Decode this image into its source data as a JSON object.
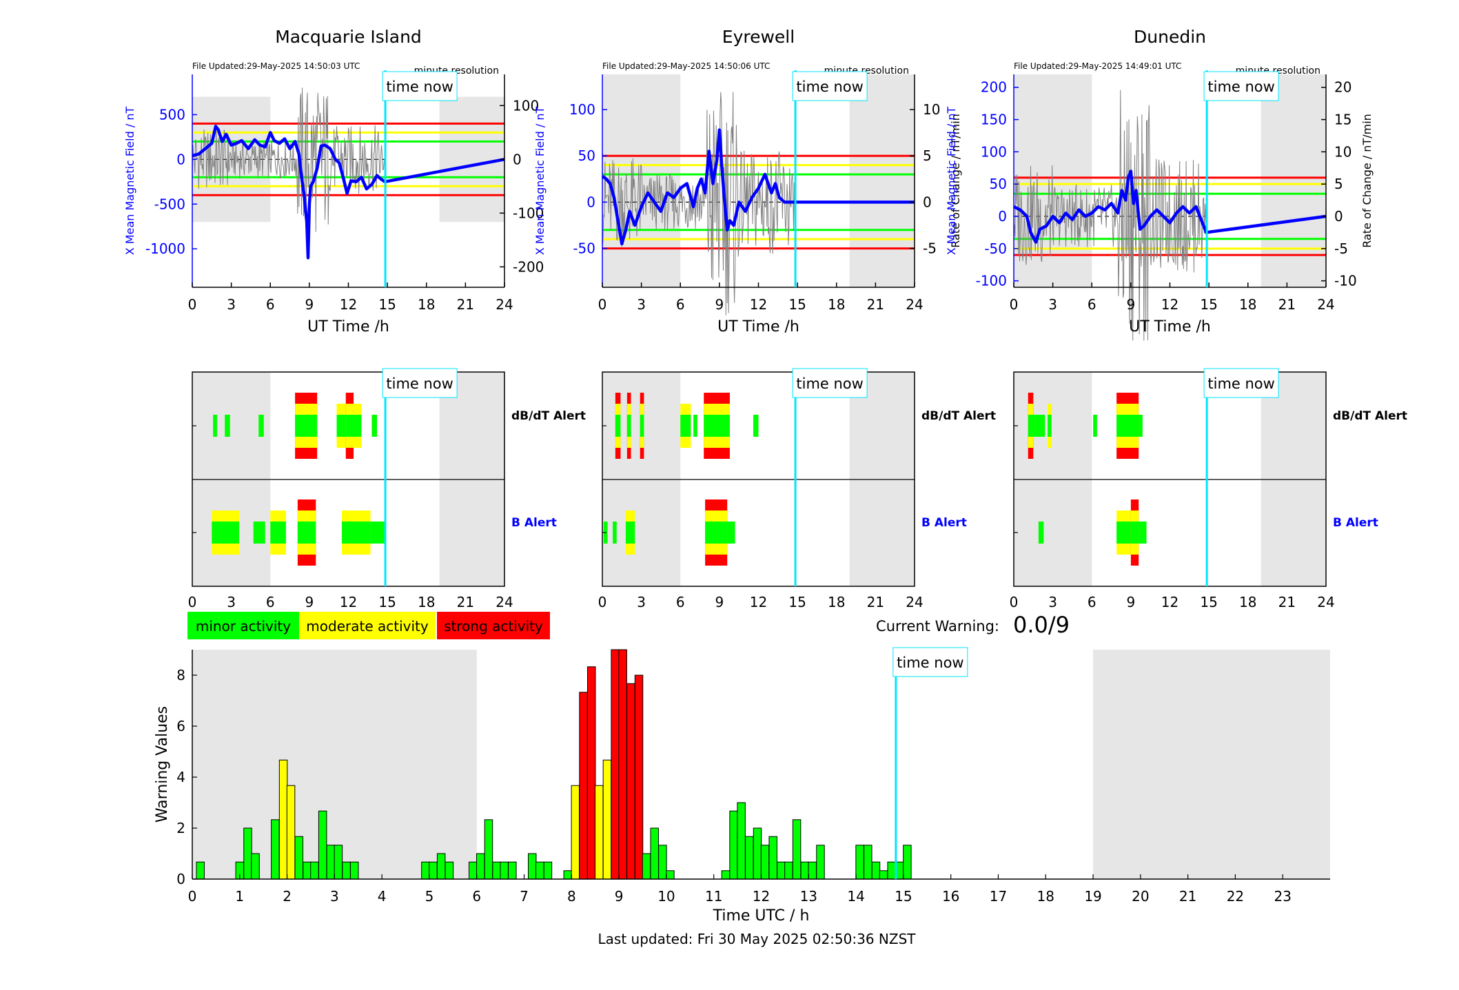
{
  "page": {
    "footer": "Last updated: Fri 30 May 2025 02:50:36 NZST"
  },
  "colors": {
    "minor": "#00ff00",
    "moderate": "#ffff00",
    "strong": "#ff0000",
    "series": "#0000ff",
    "now": "#00e5ff",
    "shade": "#e6e6e6",
    "thin": "#808080"
  },
  "time_now_label": "time now",
  "time_now_hour": 14.84,
  "night_bands": [
    [
      0,
      6
    ],
    [
      19,
      24
    ]
  ],
  "stations": [
    {
      "name": "Macquarie Island",
      "file_updated": "File Updated:29-May-2025 14:50:03 UTC",
      "resolution": "minute resolution",
      "left_label": "X Mean Magnetic Field / nT",
      "right_label": "",
      "xlabel": "UT Time /h",
      "left_ylim": [
        -1430,
        950
      ],
      "left_ticks": [
        -1000,
        -500,
        0,
        500
      ],
      "right_ylim": [
        -238,
        158
      ],
      "right_ticks": [
        -200,
        -100,
        0,
        100
      ],
      "night": [
        [
          0,
          6
        ],
        [
          19,
          24
        ]
      ],
      "night_ylim": [
        -700,
        700
      ],
      "thresholds": {
        "green": 200,
        "yellow": 300,
        "red": 400
      }
    },
    {
      "name": "Eyrewell",
      "file_updated": "File Updated:29-May-2025 14:50:06 UTC",
      "resolution": "minute resolution",
      "left_label": "X Mean Magnetic Field / nT",
      "right_label": "Rate of Change / nT/min",
      "xlabel": "UT Time /h",
      "left_ylim": [
        -92,
        138
      ],
      "left_ticks": [
        -50,
        0,
        50,
        100
      ],
      "right_ylim": [
        -9.2,
        13.8
      ],
      "right_ticks": [
        -5,
        0,
        5,
        10
      ],
      "night": [
        [
          0,
          6
        ],
        [
          19,
          24
        ]
      ],
      "night_ylim": [
        -92,
        138
      ],
      "thresholds": {
        "green": 30,
        "yellow": 40,
        "red": 50
      }
    },
    {
      "name": "Dunedin",
      "file_updated": "File Updated:29-May-2025 14:49:01 UTC",
      "resolution": "minute resolution",
      "left_label": "X Mean Magnetic Field / nT",
      "right_label": "Rate of Change / nT/min",
      "xlabel": "UT Time /h",
      "left_ylim": [
        -110,
        220
      ],
      "left_ticks": [
        -100,
        -50,
        0,
        50,
        100,
        150,
        200
      ],
      "right_ylim": [
        -11,
        22
      ],
      "right_ticks": [
        -10,
        -5,
        0,
        5,
        10,
        15,
        20
      ],
      "night": [
        [
          0,
          6
        ],
        [
          19,
          24
        ]
      ],
      "night_ylim": [
        -110,
        220
      ],
      "thresholds": {
        "green": 35,
        "yellow": 50,
        "red": 60
      }
    }
  ],
  "alert_labels": {
    "dbdt": "dB/dT Alert",
    "b": "B Alert"
  },
  "legend": {
    "minor": "minor activity",
    "moderate": "moderate activity",
    "strong": "strong activity"
  },
  "current_warning": {
    "label": "Current Warning:",
    "value": "0.0/9"
  },
  "chart_data": [
    {
      "type": "line",
      "title": "Macquarie Island",
      "xlabel": "UT Time /h",
      "ylabel": "X Mean Magnetic Field / nT",
      "xlim": [
        0,
        24
      ],
      "x_ticks": [
        0,
        3,
        6,
        9,
        12,
        15,
        18,
        21,
        24
      ],
      "series": [
        {
          "x": [
            0,
            0.5,
            1,
            1.5,
            1.8,
            2,
            2.3,
            2.6,
            3,
            3.4,
            3.8,
            4.3,
            4.8,
            5.2,
            5.6,
            6,
            6.3,
            6.7,
            7.1,
            7.5,
            7.9,
            8.2,
            8.4,
            8.6,
            8.8,
            8.9,
            9.0,
            9.1,
            9.3,
            9.6,
            9.9,
            10.2,
            10.6,
            11,
            11.3,
            11.6,
            11.9,
            12.2,
            12.6,
            13,
            13.4,
            13.8,
            14.2,
            14.5,
            14.8,
            24
          ],
          "y": [
            40,
            60,
            120,
            180,
            370,
            330,
            200,
            280,
            160,
            180,
            210,
            120,
            220,
            160,
            140,
            300,
            210,
            180,
            230,
            120,
            200,
            60,
            -200,
            -400,
            -700,
            -1100,
            -500,
            -300,
            -250,
            -100,
            150,
            160,
            120,
            0,
            -40,
            -200,
            -380,
            -240,
            -250,
            -200,
            -330,
            -280,
            -180,
            -220,
            -250,
            0
          ]
        }
      ]
    },
    {
      "type": "line",
      "title": "Eyrewell",
      "xlabel": "UT Time /h",
      "ylabel": "X Mean Magnetic Field / nT",
      "xlim": [
        0,
        24
      ],
      "x_ticks": [
        0,
        3,
        6,
        9,
        12,
        15,
        18,
        21,
        24
      ],
      "series": [
        {
          "x": [
            0,
            0.3,
            0.6,
            0.9,
            1.2,
            1.5,
            1.8,
            2.1,
            2.5,
            3,
            3.5,
            4,
            4.5,
            5,
            5.5,
            6,
            6.5,
            7,
            7.3,
            7.6,
            7.9,
            8.2,
            8.5,
            8.8,
            9.0,
            9.2,
            9.4,
            9.6,
            9.8,
            10.1,
            10.5,
            11,
            11.5,
            12,
            12.5,
            13,
            13.3,
            13.6,
            14,
            24
          ],
          "y": [
            28,
            25,
            20,
            5,
            -20,
            -45,
            -30,
            -10,
            -25,
            -5,
            10,
            0,
            -10,
            10,
            5,
            15,
            20,
            -5,
            15,
            25,
            10,
            55,
            20,
            45,
            78,
            35,
            0,
            -30,
            -20,
            -25,
            0,
            -10,
            5,
            15,
            30,
            10,
            20,
            5,
            0,
            0
          ]
        }
      ]
    },
    {
      "type": "line",
      "title": "Dunedin",
      "xlabel": "UT Time /h",
      "ylabel": "X Mean Magnetic Field / nT",
      "xlim": [
        0,
        24
      ],
      "x_ticks": [
        0,
        3,
        6,
        9,
        12,
        15,
        18,
        21,
        24
      ],
      "series": [
        {
          "x": [
            0,
            0.5,
            1,
            1.3,
            1.7,
            2,
            2.5,
            3,
            3.5,
            4,
            4.5,
            5,
            5.5,
            6,
            6.5,
            7,
            7.5,
            8,
            8.3,
            8.6,
            8.8,
            9.0,
            9.2,
            9.4,
            9.7,
            10,
            10.5,
            11,
            11.5,
            12,
            12.5,
            13,
            13.5,
            14,
            14.5,
            14.8,
            24
          ],
          "y": [
            15,
            10,
            0,
            -25,
            -40,
            -20,
            -15,
            0,
            -10,
            5,
            -5,
            10,
            0,
            5,
            15,
            10,
            20,
            5,
            40,
            25,
            60,
            70,
            20,
            40,
            -20,
            -15,
            0,
            10,
            0,
            -10,
            5,
            15,
            5,
            15,
            -10,
            -25,
            0
          ]
        }
      ]
    },
    {
      "type": "bar",
      "xlabel": "Time UTC / h",
      "ylabel": "Warning Values",
      "xlim": [
        0,
        24
      ],
      "ylim": [
        0,
        9
      ],
      "x_ticks": [
        0,
        1,
        2,
        3,
        4,
        5,
        6,
        7,
        8,
        9,
        10,
        11,
        12,
        13,
        14,
        15,
        16,
        17,
        18,
        19,
        20,
        21,
        22,
        23
      ],
      "y_ticks": [
        0,
        2,
        4,
        6,
        8
      ],
      "bar_width_h": 0.1667,
      "x": [
        0.17,
        1.0,
        1.17,
        1.33,
        1.75,
        1.92,
        2.08,
        2.25,
        2.42,
        2.58,
        2.75,
        2.92,
        3.08,
        3.25,
        3.42,
        4.92,
        5.08,
        5.25,
        5.42,
        5.92,
        6.08,
        6.25,
        6.42,
        6.58,
        6.75,
        7.17,
        7.33,
        7.5,
        7.92,
        8.08,
        8.25,
        8.42,
        8.58,
        8.75,
        8.92,
        9.08,
        9.25,
        9.42,
        9.58,
        9.75,
        9.92,
        10.08,
        11.25,
        11.42,
        11.58,
        11.75,
        11.92,
        12.08,
        12.25,
        12.42,
        12.58,
        12.75,
        12.92,
        13.08,
        13.25,
        14.08,
        14.25,
        14.42,
        14.58,
        14.75,
        14.92,
        15.08
      ],
      "values": [
        0.67,
        0.67,
        2,
        1,
        2.33,
        4.67,
        3.67,
        1.67,
        0.67,
        0.67,
        2.67,
        1.33,
        1.33,
        0.67,
        0.67,
        0.67,
        0.67,
        1,
        0.67,
        0.67,
        1,
        2.33,
        0.67,
        0.67,
        0.67,
        1,
        0.67,
        0.67,
        0.33,
        3.67,
        7.33,
        8.33,
        3.67,
        4.67,
        9,
        9,
        7.67,
        8,
        1,
        2,
        1.33,
        0.33,
        0.33,
        2.67,
        3,
        1.67,
        2,
        1.33,
        1.67,
        0.67,
        0.67,
        2.33,
        0.67,
        0.67,
        1.33,
        1.33,
        1.33,
        0.67,
        0.33,
        0.67,
        0.67,
        1.33
      ],
      "levels": [
        "minor",
        "minor",
        "minor",
        "minor",
        "minor",
        "moderate",
        "moderate",
        "minor",
        "minor",
        "minor",
        "minor",
        "minor",
        "minor",
        "minor",
        "minor",
        "minor",
        "minor",
        "minor",
        "minor",
        "minor",
        "minor",
        "minor",
        "minor",
        "minor",
        "minor",
        "minor",
        "minor",
        "minor",
        "minor",
        "moderate",
        "strong",
        "strong",
        "moderate",
        "moderate",
        "strong",
        "strong",
        "strong",
        "strong",
        "minor",
        "minor",
        "minor",
        "minor",
        "minor",
        "minor",
        "minor",
        "minor",
        "minor",
        "minor",
        "minor",
        "minor",
        "minor",
        "minor",
        "minor",
        "minor",
        "minor",
        "minor",
        "minor",
        "minor",
        "minor",
        "minor",
        "minor",
        "minor"
      ]
    }
  ],
  "alert_strips": [
    {
      "dbdt": [
        [
          1.6,
          1.9,
          "minor"
        ],
        [
          2.5,
          2.9,
          "minor"
        ],
        [
          5.1,
          5.5,
          "minor"
        ],
        [
          7.9,
          9.6,
          "strong"
        ],
        [
          11.1,
          11.8,
          "moderate"
        ],
        [
          11.8,
          12.4,
          "strong"
        ],
        [
          12.4,
          13.0,
          "moderate"
        ],
        [
          13.8,
          14.2,
          "minor"
        ]
      ],
      "b": [
        [
          1.5,
          3.6,
          "moderate"
        ],
        [
          4.7,
          5.6,
          "minor"
        ],
        [
          6.0,
          7.2,
          "moderate"
        ],
        [
          8.1,
          9.5,
          "strong"
        ],
        [
          11.5,
          13.7,
          "moderate"
        ],
        [
          13.7,
          14.9,
          "minor"
        ]
      ]
    },
    {
      "dbdt": [
        [
          1.0,
          1.4,
          "strong"
        ],
        [
          1.9,
          2.2,
          "strong"
        ],
        [
          2.9,
          3.2,
          "strong"
        ],
        [
          6.0,
          6.8,
          "moderate"
        ],
        [
          7.0,
          7.3,
          "minor"
        ],
        [
          7.8,
          9.8,
          "strong"
        ],
        [
          11.6,
          12.0,
          "minor"
        ]
      ],
      "b": [
        [
          0.1,
          0.4,
          "minor"
        ],
        [
          0.8,
          1.1,
          "minor"
        ],
        [
          1.8,
          2.5,
          "moderate"
        ],
        [
          7.9,
          9.6,
          "strong"
        ],
        [
          9.6,
          10.2,
          "minor"
        ]
      ]
    },
    {
      "dbdt": [
        [
          1.1,
          1.5,
          "strong"
        ],
        [
          1.5,
          2.4,
          "minor"
        ],
        [
          2.6,
          2.9,
          "moderate"
        ],
        [
          6.1,
          6.4,
          "minor"
        ],
        [
          7.9,
          9.6,
          "strong"
        ],
        [
          9.6,
          9.9,
          "minor"
        ]
      ],
      "b": [
        [
          1.9,
          2.3,
          "minor"
        ],
        [
          7.9,
          9.0,
          "moderate"
        ],
        [
          9.0,
          9.6,
          "strong"
        ],
        [
          9.6,
          10.2,
          "minor"
        ]
      ]
    }
  ]
}
